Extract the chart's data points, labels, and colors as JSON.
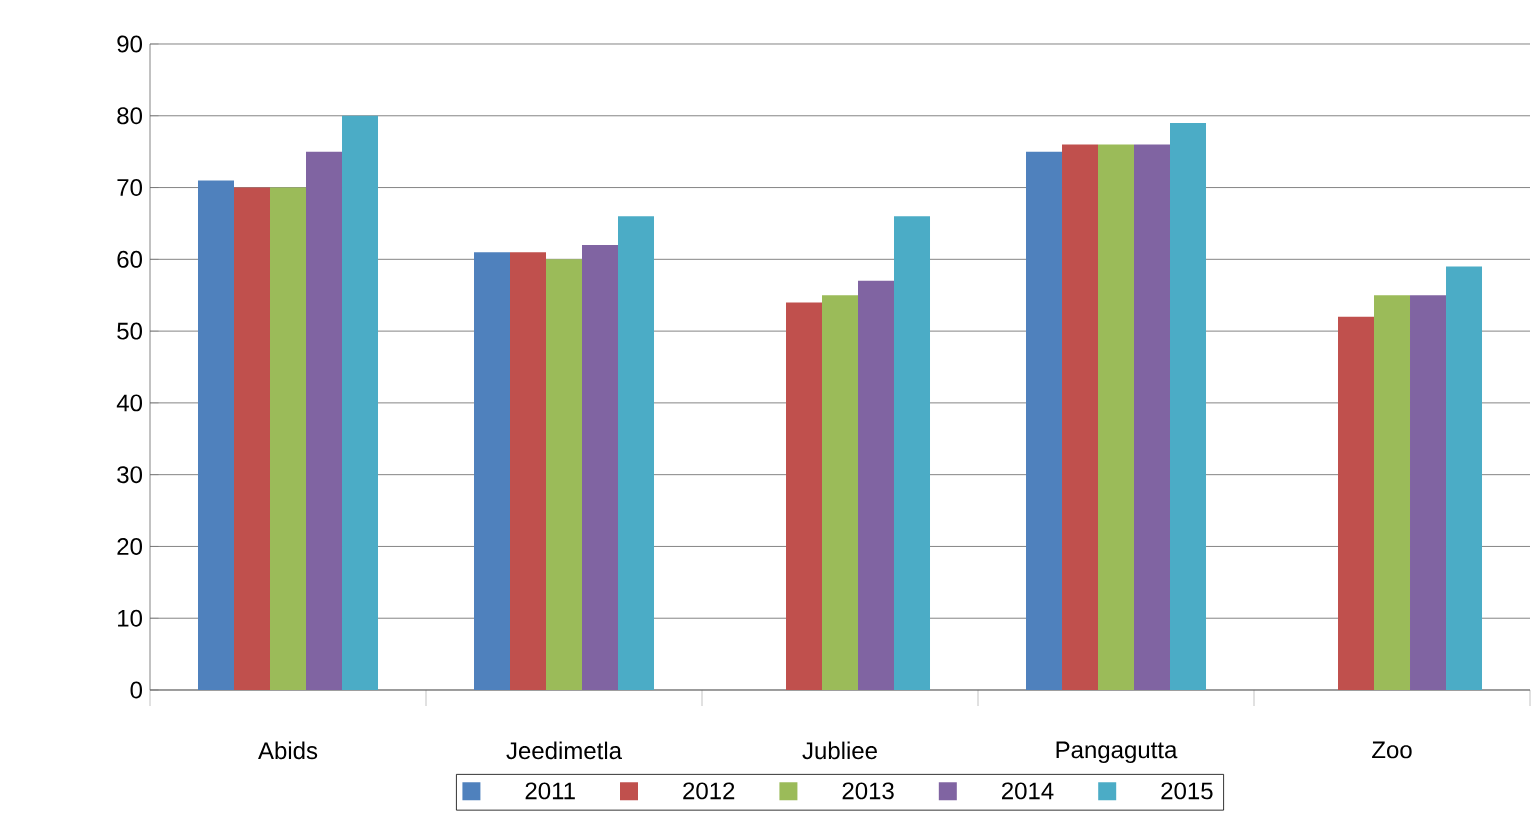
{
  "chart_data": {
    "type": "bar",
    "categories": [
      "Abids",
      "Jeedimetla",
      "Jubliee",
      "Pangagutta",
      "Zoo"
    ],
    "series": [
      {
        "name": "2011",
        "color": "#4f81bd",
        "values": [
          71,
          61,
          null,
          75,
          null
        ]
      },
      {
        "name": "2012",
        "color": "#c0504d",
        "values": [
          70,
          61,
          54,
          76,
          52
        ]
      },
      {
        "name": "2013",
        "color": "#9bbb59",
        "values": [
          70,
          60,
          55,
          76,
          55
        ]
      },
      {
        "name": "2014",
        "color": "#8064a2",
        "values": [
          75,
          62,
          57,
          76,
          55
        ]
      },
      {
        "name": "2015",
        "color": "#4bacc6",
        "values": [
          80,
          66,
          66,
          79,
          59
        ]
      }
    ],
    "ylim": [
      0,
      90
    ],
    "yticks": [
      0,
      10,
      20,
      30,
      40,
      50,
      60,
      70,
      80,
      90
    ],
    "grid": "y",
    "legend": "bottom"
  }
}
